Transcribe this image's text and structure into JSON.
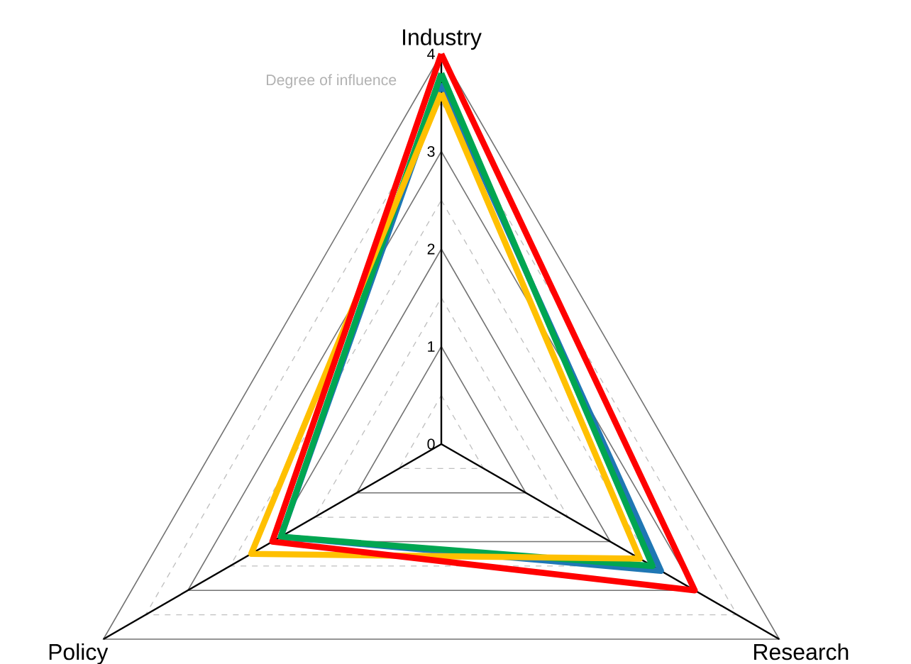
{
  "chart_data": {
    "type": "radar",
    "ylabel": "Degree of influence",
    "categories": [
      "Industry",
      "Research",
      "Policy"
    ],
    "series": [
      {
        "color": "#1f77b4",
        "values": [
          3.7,
          2.6,
          1.9
        ]
      },
      {
        "color": "#00a651",
        "values": [
          3.8,
          2.5,
          1.9
        ]
      },
      {
        "color": "#ffc000",
        "values": [
          3.6,
          2.35,
          2.25
        ]
      },
      {
        "color": "#ff0000",
        "values": [
          4,
          3,
          2
        ]
      }
    ],
    "ylim": [
      0,
      4
    ],
    "yticks": [
      0,
      1,
      2,
      3,
      4
    ],
    "grid": true,
    "line_style": "solid"
  }
}
